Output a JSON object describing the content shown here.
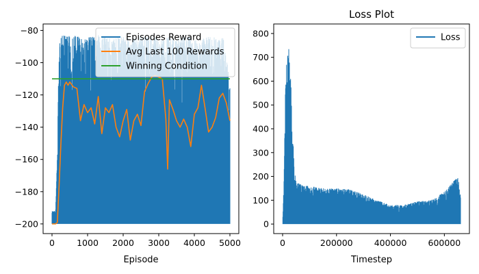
{
  "colors": {
    "blue": "#1f77b4",
    "orange": "#ff7f0e",
    "green": "#2ca02c"
  },
  "chart_data": [
    {
      "type": "line",
      "title": "",
      "xlabel": "Episode",
      "ylabel": "",
      "xlim": [
        -250,
        5250
      ],
      "ylim": [
        -206,
        -76
      ],
      "xticks": [
        0,
        1000,
        2000,
        3000,
        4000,
        5000
      ],
      "yticks": [
        -200,
        -180,
        -160,
        -140,
        -120,
        -100,
        -80
      ],
      "legend_position": "top-right",
      "series": [
        {
          "name": "Episodes Reward",
          "color": "#1f77b4",
          "kind": "noisy-band",
          "x": [
            0,
            100,
            150,
            200,
            250,
            300,
            350,
            400,
            500,
            700,
            900,
            1100,
            1300,
            1500,
            1700,
            1900,
            2100,
            2300,
            2500,
            2700,
            2900,
            3000,
            3100,
            3200,
            3300,
            3500,
            3700,
            3900,
            4100,
            4300,
            4500,
            4700,
            4850,
            5000
          ],
          "upper": [
            -192,
            -192,
            -156,
            -84,
            -84,
            -83,
            -83,
            -84,
            -83,
            -83,
            -85,
            -84,
            -83,
            -84,
            -85,
            -84,
            -84,
            -84,
            -83,
            -84,
            -84,
            -85,
            -86,
            -84,
            -84,
            -85,
            -84,
            -84,
            -85,
            -84,
            -84,
            -85,
            -84,
            -115
          ],
          "lower": [
            -200,
            -200,
            -200,
            -200,
            -200,
            -200,
            -200,
            -200,
            -200,
            -200,
            -200,
            -200,
            -200,
            -200,
            -200,
            -200,
            -200,
            -200,
            -200,
            -200,
            -200,
            -200,
            -200,
            -200,
            -200,
            -200,
            -200,
            -200,
            -200,
            -200,
            -200,
            -200,
            -200,
            -200
          ]
        },
        {
          "name": "Avg Last 100 Rewards",
          "color": "#ff7f0e",
          "x": [
            0,
            100,
            150,
            200,
            250,
            300,
            350,
            400,
            450,
            500,
            600,
            700,
            800,
            900,
            1000,
            1100,
            1200,
            1300,
            1400,
            1500,
            1600,
            1700,
            1800,
            1900,
            2000,
            2100,
            2200,
            2300,
            2400,
            2500,
            2600,
            2700,
            2800,
            2900,
            3000,
            3100,
            3200,
            3250,
            3300,
            3400,
            3500,
            3600,
            3700,
            3800,
            3900,
            4000,
            4100,
            4200,
            4300,
            4400,
            4500,
            4600,
            4700,
            4800,
            4900,
            5000
          ],
          "y": [
            -200,
            -200,
            -199,
            -176,
            -150,
            -128,
            -114,
            -112,
            -114,
            -112,
            -115,
            -116,
            -136,
            -126,
            -131,
            -128,
            -138,
            -121,
            -144,
            -128,
            -131,
            -126,
            -140,
            -146,
            -136,
            -129,
            -148,
            -136,
            -132,
            -139,
            -118,
            -113,
            -109,
            -108,
            -109,
            -110,
            -135,
            -166,
            -123,
            -129,
            -136,
            -140,
            -135,
            -140,
            -152,
            -132,
            -128,
            -114,
            -128,
            -143,
            -140,
            -134,
            -122,
            -119,
            -125,
            -136
          ]
        },
        {
          "name": "Winning Condition",
          "color": "#2ca02c",
          "x": [
            0,
            5000
          ],
          "y": [
            -110,
            -110
          ]
        }
      ]
    },
    {
      "type": "line",
      "title": "Loss Plot",
      "xlabel": "Timestep",
      "ylabel": "",
      "xlim": [
        -33000,
        693000
      ],
      "ylim": [
        -40,
        840
      ],
      "xticks": [
        0,
        200000,
        400000,
        600000
      ],
      "yticks": [
        0,
        100,
        200,
        300,
        400,
        500,
        600,
        700,
        800
      ],
      "legend_position": "top-right",
      "series": [
        {
          "name": "Loss",
          "color": "#1f77b4",
          "kind": "noisy-band",
          "x": [
            0,
            5000,
            10000,
            15000,
            20000,
            25000,
            30000,
            35000,
            40000,
            45000,
            50000,
            60000,
            80000,
            100000,
            150000,
            200000,
            250000,
            300000,
            350000,
            400000,
            450000,
            500000,
            550000,
            600000,
            650000,
            660000
          ],
          "upper": [
            0,
            180,
            540,
            700,
            785,
            700,
            620,
            450,
            320,
            220,
            180,
            170,
            160,
            160,
            150,
            150,
            145,
            125,
            100,
            80,
            80,
            95,
            100,
            135,
            200,
            130
          ],
          "lower": [
            0,
            0,
            0,
            0,
            0,
            0,
            0,
            0,
            0,
            0,
            0,
            0,
            0,
            0,
            0,
            0,
            0,
            0,
            0,
            0,
            0,
            0,
            0,
            0,
            0,
            0
          ]
        }
      ]
    }
  ]
}
